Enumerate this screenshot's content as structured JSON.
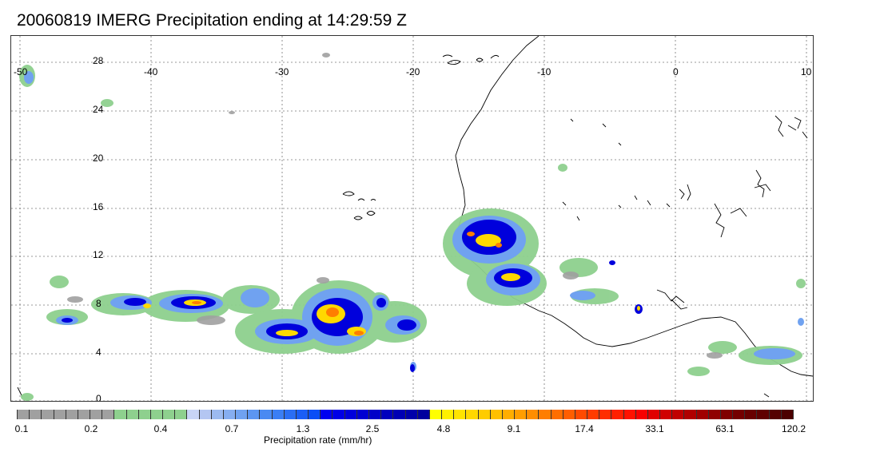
{
  "title": "20060819 IMERG Precipitation ending at 14:29:59 Z",
  "map": {
    "lon_labels": [
      "-50",
      "-40",
      "-30",
      "-20",
      "-10",
      "0",
      "10"
    ],
    "lat_labels": [
      "28",
      "24",
      "20",
      "16",
      "12",
      "8",
      "4",
      "0"
    ]
  },
  "legend": {
    "units_label": "Precipitation rate (mm/hr)",
    "tick_labels": [
      "0.1",
      "0.2",
      "0.4",
      "0.7",
      "1.3",
      "2.5",
      "4.8",
      "9.1",
      "17.4",
      "33.1",
      "63.1",
      "120.2"
    ],
    "colors": [
      "#a0a0a0",
      "#a0a0a0",
      "#a0a0a0",
      "#a0a0a0",
      "#a0a0a0",
      "#a0a0a0",
      "#a0a0a0",
      "#a0a0a0",
      "#8ed08e",
      "#8ed08e",
      "#8ed08e",
      "#8ed08e",
      "#8ed08e",
      "#8ed08e",
      "#c8d4f6",
      "#b4c6f2",
      "#9cbaf0",
      "#86aef0",
      "#70a2f0",
      "#5c96f2",
      "#4a8af2",
      "#3a7ef4",
      "#2a6ef4",
      "#1a5ef6",
      "#0a4ef6",
      "#0000f0",
      "#0000e6",
      "#0000dc",
      "#0000d2",
      "#0000c8",
      "#0000be",
      "#0000b4",
      "#0000aa",
      "#00009e",
      "#ffff00",
      "#fff000",
      "#ffe400",
      "#ffd800",
      "#ffcc00",
      "#ffc000",
      "#ffae00",
      "#ff9e00",
      "#ff8e00",
      "#ff7e00",
      "#ff6e00",
      "#ff5e00",
      "#ff4a00",
      "#ff3c00",
      "#ff2e00",
      "#ff2000",
      "#ff1200",
      "#f80000",
      "#e00000",
      "#d00000",
      "#c00000",
      "#b00000",
      "#a00000",
      "#900000",
      "#800000",
      "#740000",
      "#680000",
      "#600000",
      "#560000",
      "#4c0000"
    ]
  }
}
